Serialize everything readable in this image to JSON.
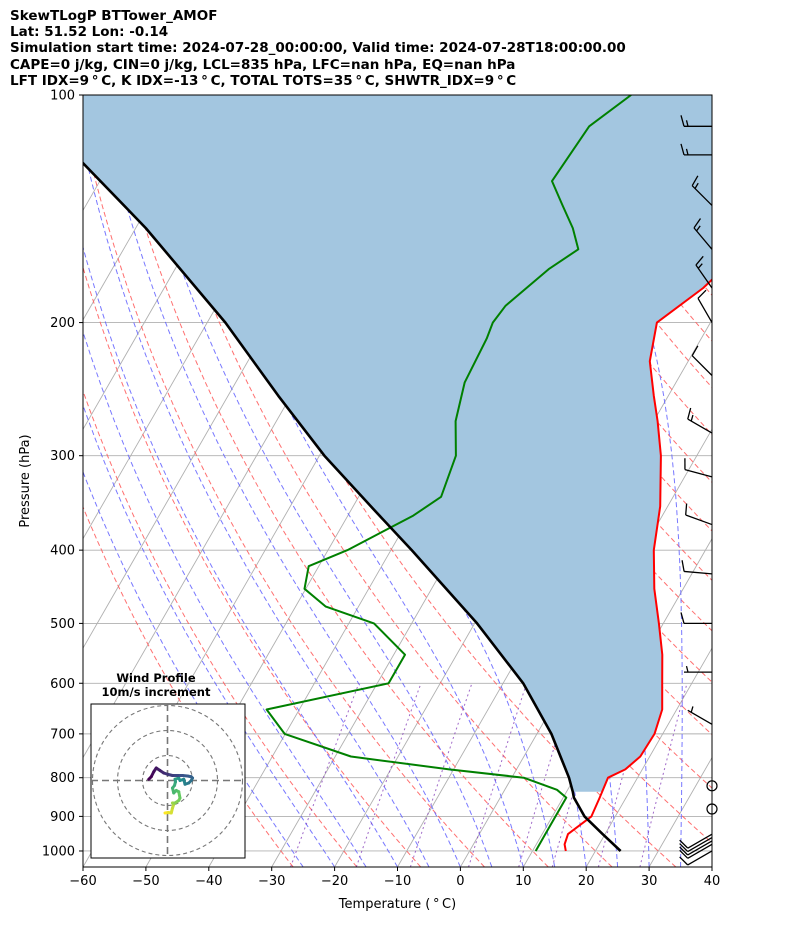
{
  "header": {
    "line1": "SkewTLogP BTTower_AMOF",
    "line2": "Lat: 51.52   Lon: -0.14",
    "line3": "Simulation start time: 2024-07-28_00:00:00, Valid time: 2024-07-28T18:00:00.00",
    "line4": "CAPE=0 j/kg, CIN=0 j/kg, LCL=835 hPa, LFC=nan hPa, EQ=nan hPa",
    "line5": "LFT IDX=9$^\\circ$C, K IDX=-13$^\\circ$C, TOTAL TOTS=35$^\\circ$C, SHWTR_IDX=9$^\\circ$C"
  },
  "header_display": {
    "line5": "LFT IDX=9 ° C, K IDX=-13 ° C, TOTAL TOTS=35 ° C, SHWTR_IDX=9 ° C"
  },
  "chart_data": [
    {
      "type": "line",
      "subtype": "skew-t log-p",
      "xlabel": "Temperature ( ° C)",
      "ylabel": "Pressure (hPa)",
      "xlim": [
        -60,
        40
      ],
      "ylim": [
        1050,
        100
      ],
      "yscale": "log",
      "x_ticks": [
        -60,
        -50,
        -40,
        -30,
        -20,
        -10,
        0,
        10,
        20,
        30,
        40
      ],
      "y_ticks": [
        100,
        200,
        300,
        400,
        500,
        600,
        700,
        800,
        900,
        1000
      ],
      "grid": true,
      "skew": 30,
      "colors": {
        "temperature": "#ff0000",
        "dewpoint": "#008000",
        "parcel": "#000000",
        "shading": "#a3c6e0",
        "dry_adiabats": "#ff6060",
        "moist_adiabats": "#6060ff",
        "mixing_ratio": "#8844bb",
        "isotherms": "#b0b0b0"
      },
      "series": [
        {
          "key": "temperature",
          "pressure": [
            1000,
            980,
            950,
            900,
            850,
            800,
            780,
            750,
            700,
            650,
            600,
            550,
            500,
            450,
            400,
            350,
            300,
            270,
            250,
            225,
            200,
            180,
            160,
            140,
            120,
            110,
            100
          ],
          "values": [
            15.3,
            14.5,
            14.1,
            16.2,
            15.8,
            15.3,
            17.3,
            18.5,
            18.7,
            17.7,
            15.3,
            12.7,
            9.3,
            5.4,
            1.8,
            -1.2,
            -5.7,
            -9.4,
            -12.3,
            -16.1,
            -18.5,
            -14.3,
            -11.4,
            -10.6,
            -11.2,
            -11.4,
            -12.4
          ]
        },
        {
          "key": "dewpoint",
          "pressure": [
            1000,
            950,
            900,
            850,
            830,
            800,
            780,
            750,
            700,
            650,
            600,
            550,
            500,
            475,
            450,
            420,
            400,
            360,
            340,
            300,
            270,
            240,
            210,
            200,
            190,
            170,
            160,
            150,
            140,
            130,
            110,
            100
          ],
          "values": [
            10.5,
            10.5,
            10.5,
            10.5,
            8.3,
            1.9,
            -10.7,
            -27.5,
            -40.1,
            -45.2,
            -28.2,
            -28.2,
            -36.0,
            -45.2,
            -50.2,
            -51.6,
            -46.9,
            -39.6,
            -36.9,
            -38.3,
            -41.5,
            -43.6,
            -44.1,
            -44.6,
            -44.1,
            -40.6,
            -37.7,
            -40.5,
            -44.2,
            -48.1,
            -47.2,
            -43.4
          ]
        },
        {
          "key": "parcel",
          "pressure": [
            1000,
            950,
            900,
            850,
            835,
            800,
            700,
            600,
            500,
            400,
            350,
            300,
            250,
            200,
            150,
            100
          ],
          "values": [
            24.0,
            19.6,
            15.1,
            11.7,
            11.0,
            9.1,
            2.3,
            -6.8,
            -19.6,
            -36.7,
            -47.2,
            -59.2,
            -72.0,
            -87.1,
            -108.4,
            -141.0
          ]
        }
      ],
      "wind_barbs": {
        "pressure": [
          1000,
          980,
          970,
          960,
          950,
          880,
          820,
          680,
          580,
          500,
          430,
          370,
          320,
          280,
          235,
          200,
          180,
          160,
          140,
          120,
          110
        ],
        "speed_kt": [
          10,
          10,
          10,
          10,
          10,
          0,
          0,
          5,
          5,
          10,
          10,
          10,
          10,
          15,
          10,
          10,
          15,
          15,
          15,
          15,
          15
        ],
        "direction_deg": [
          240,
          240,
          240,
          240,
          240,
          0,
          0,
          300,
          270,
          270,
          275,
          290,
          285,
          300,
          315,
          330,
          325,
          320,
          315,
          270,
          270
        ]
      }
    },
    {
      "type": "line",
      "subtype": "hodograph",
      "title": "Wind Profile\n10m/s increment",
      "ring_increment": 10,
      "u": [
        -1.0,
        0.3,
        1.5,
        2.0,
        2.5,
        2.0,
        3.0,
        4.5,
        5.0,
        4.5,
        3.5,
        2.5,
        2.0,
        2.8,
        3.2,
        3.0,
        4.5,
        5.0,
        6.5,
        7.0,
        8.5,
        9.5,
        10.0,
        9.5,
        8.0,
        6.0,
        4.0,
        2.0,
        0.0,
        -1.5,
        -3.0,
        -4.5,
        -5.5,
        -6.5,
        -7.5
      ],
      "v": [
        -13.0,
        -12.8,
        -13.0,
        -11.0,
        -9.5,
        -9.0,
        -9.0,
        -8.0,
        -7.0,
        -4.5,
        -4.0,
        -5.0,
        -3.0,
        -2.0,
        -0.5,
        0.5,
        1.0,
        0.0,
        0.5,
        -1.5,
        -1.0,
        0.0,
        1.0,
        1.5,
        1.8,
        2.0,
        2.0,
        2.0,
        2.5,
        3.0,
        4.0,
        5.0,
        3.5,
        1.5,
        0.5
      ]
    }
  ]
}
